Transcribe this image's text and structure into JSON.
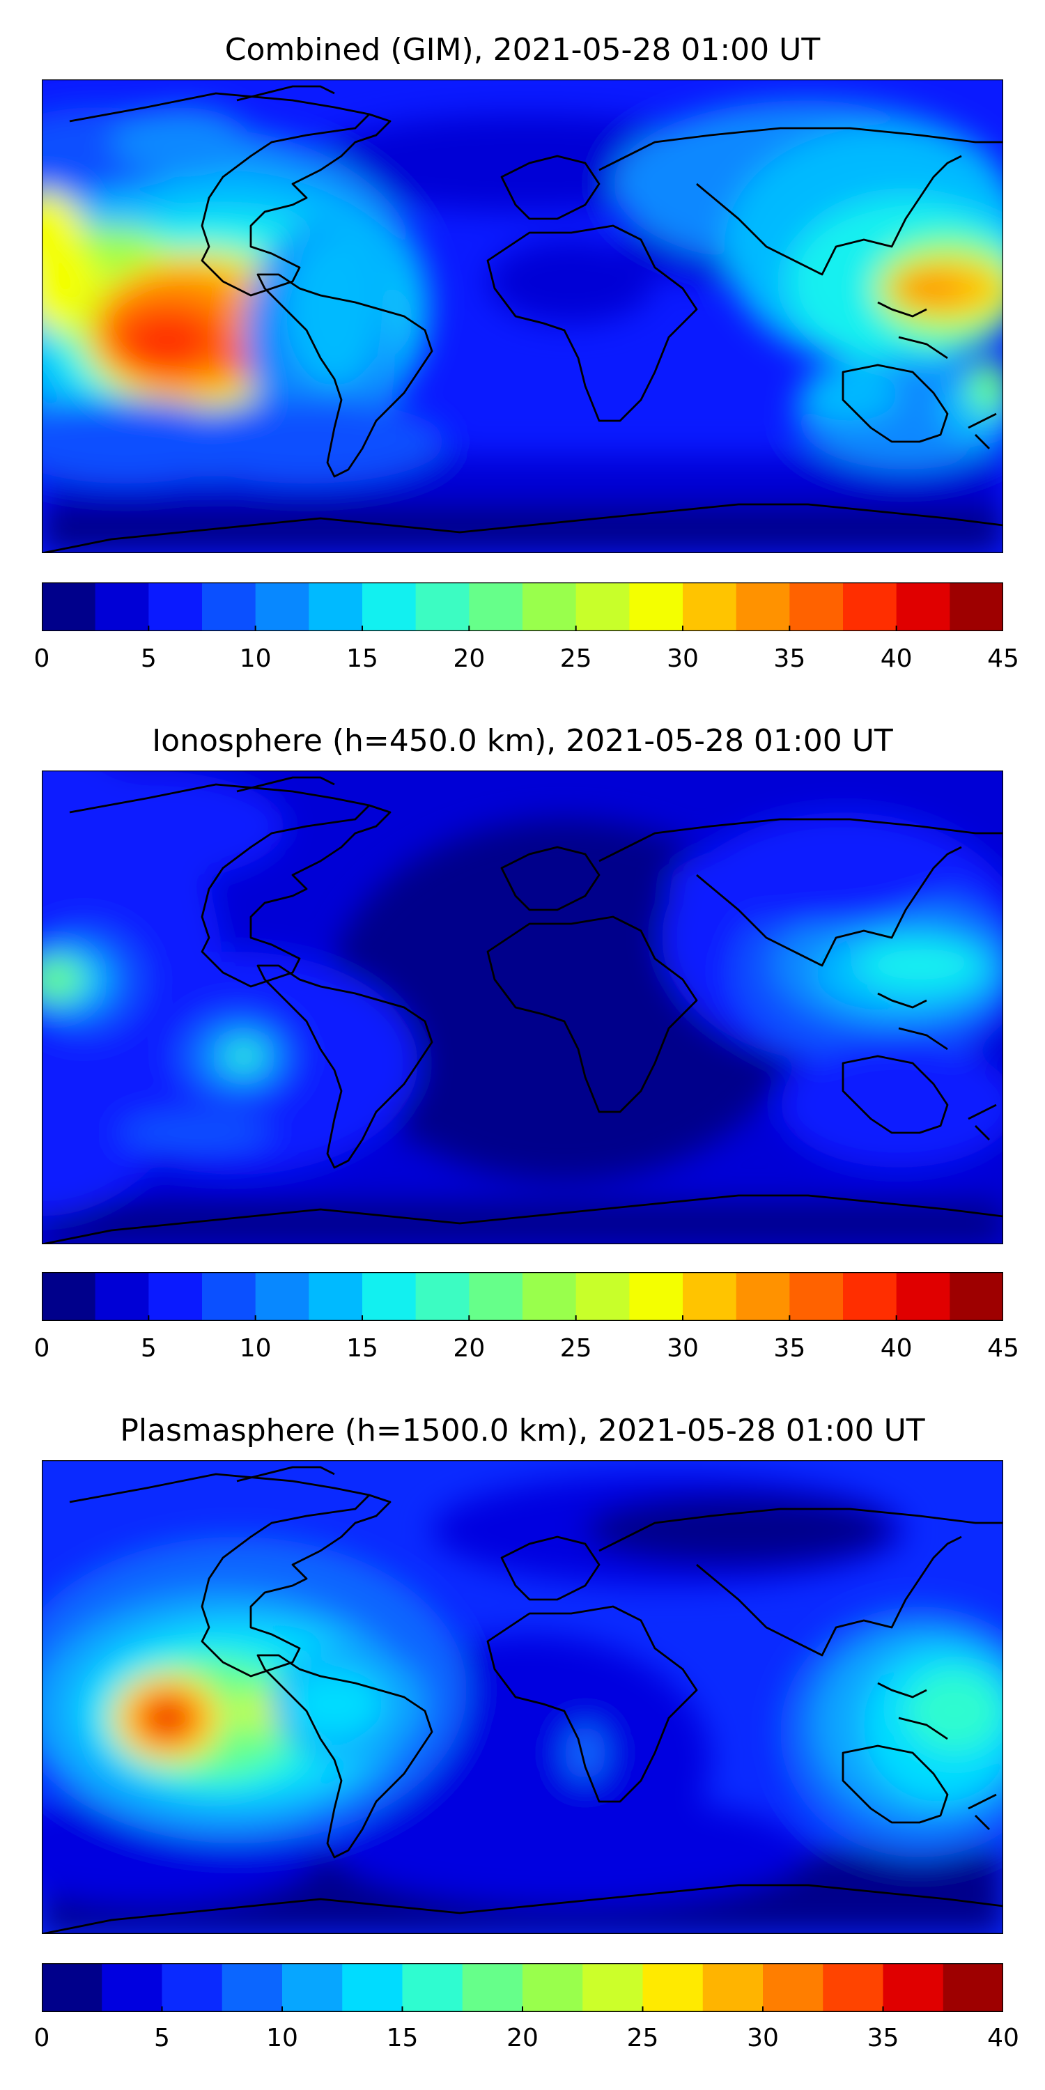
{
  "panels": [
    {
      "title": "Combined (GIM), 2021-05-28 01:00 UT",
      "colorbar": {
        "min": 0,
        "max": 45,
        "levels": [
          0,
          2.5,
          5,
          7.5,
          10,
          12.5,
          15,
          17.5,
          20,
          22.5,
          25,
          27.5,
          30,
          32.5,
          35,
          37.5,
          40,
          42.5,
          45
        ],
        "tick_labels": [
          "0",
          "5",
          "10",
          "15",
          "20",
          "25",
          "30",
          "35",
          "40",
          "45"
        ]
      },
      "colors": [
        "#00008b",
        "#0000d6",
        "#0a1aff",
        "#0b50ff",
        "#0888ff",
        "#00baff",
        "#12f0f0",
        "#3cfcc2",
        "#66ff8a",
        "#99ff4c",
        "#c8ff2a",
        "#f4ff00",
        "#ffc400",
        "#ff9200",
        "#ff6200",
        "#ff2e00",
        "#e00000",
        "#9e0000"
      ]
    },
    {
      "title": "Ionosphere  (h=450.0 km), 2021-05-28 01:00 UT",
      "colorbar": {
        "min": 0,
        "max": 45,
        "levels": [
          0,
          2.5,
          5,
          7.5,
          10,
          12.5,
          15,
          17.5,
          20,
          22.5,
          25,
          27.5,
          30,
          32.5,
          35,
          37.5,
          40,
          42.5,
          45
        ],
        "tick_labels": [
          "0",
          "5",
          "10",
          "15",
          "20",
          "25",
          "30",
          "35",
          "40",
          "45"
        ]
      },
      "colors": [
        "#00008b",
        "#0000d6",
        "#0a1aff",
        "#0b50ff",
        "#0888ff",
        "#00baff",
        "#12f0f0",
        "#3cfcc2",
        "#66ff8a",
        "#99ff4c",
        "#c8ff2a",
        "#f4ff00",
        "#ffc400",
        "#ff9200",
        "#ff6200",
        "#ff2e00",
        "#e00000",
        "#9e0000"
      ]
    },
    {
      "title": "Plasmasphere (h=1500.0 km), 2021-05-28 01:00 UT",
      "colorbar": {
        "min": 0,
        "max": 40,
        "levels": [
          0,
          2.5,
          5,
          7.5,
          10,
          12.5,
          15,
          17.5,
          20,
          22.5,
          25,
          27.5,
          30,
          32.5,
          35,
          37.5,
          40
        ],
        "tick_labels": [
          "0",
          "5",
          "10",
          "15",
          "20",
          "25",
          "30",
          "35",
          "40"
        ]
      },
      "colors": [
        "#00008b",
        "#0000e0",
        "#0a2aff",
        "#0b66ff",
        "#07a6ff",
        "#00dcff",
        "#2ffcd0",
        "#66ff8a",
        "#99ff4c",
        "#ccff2a",
        "#ffea00",
        "#ffb400",
        "#ff7e00",
        "#ff4400",
        "#e00000",
        "#9e0000"
      ]
    }
  ]
}
